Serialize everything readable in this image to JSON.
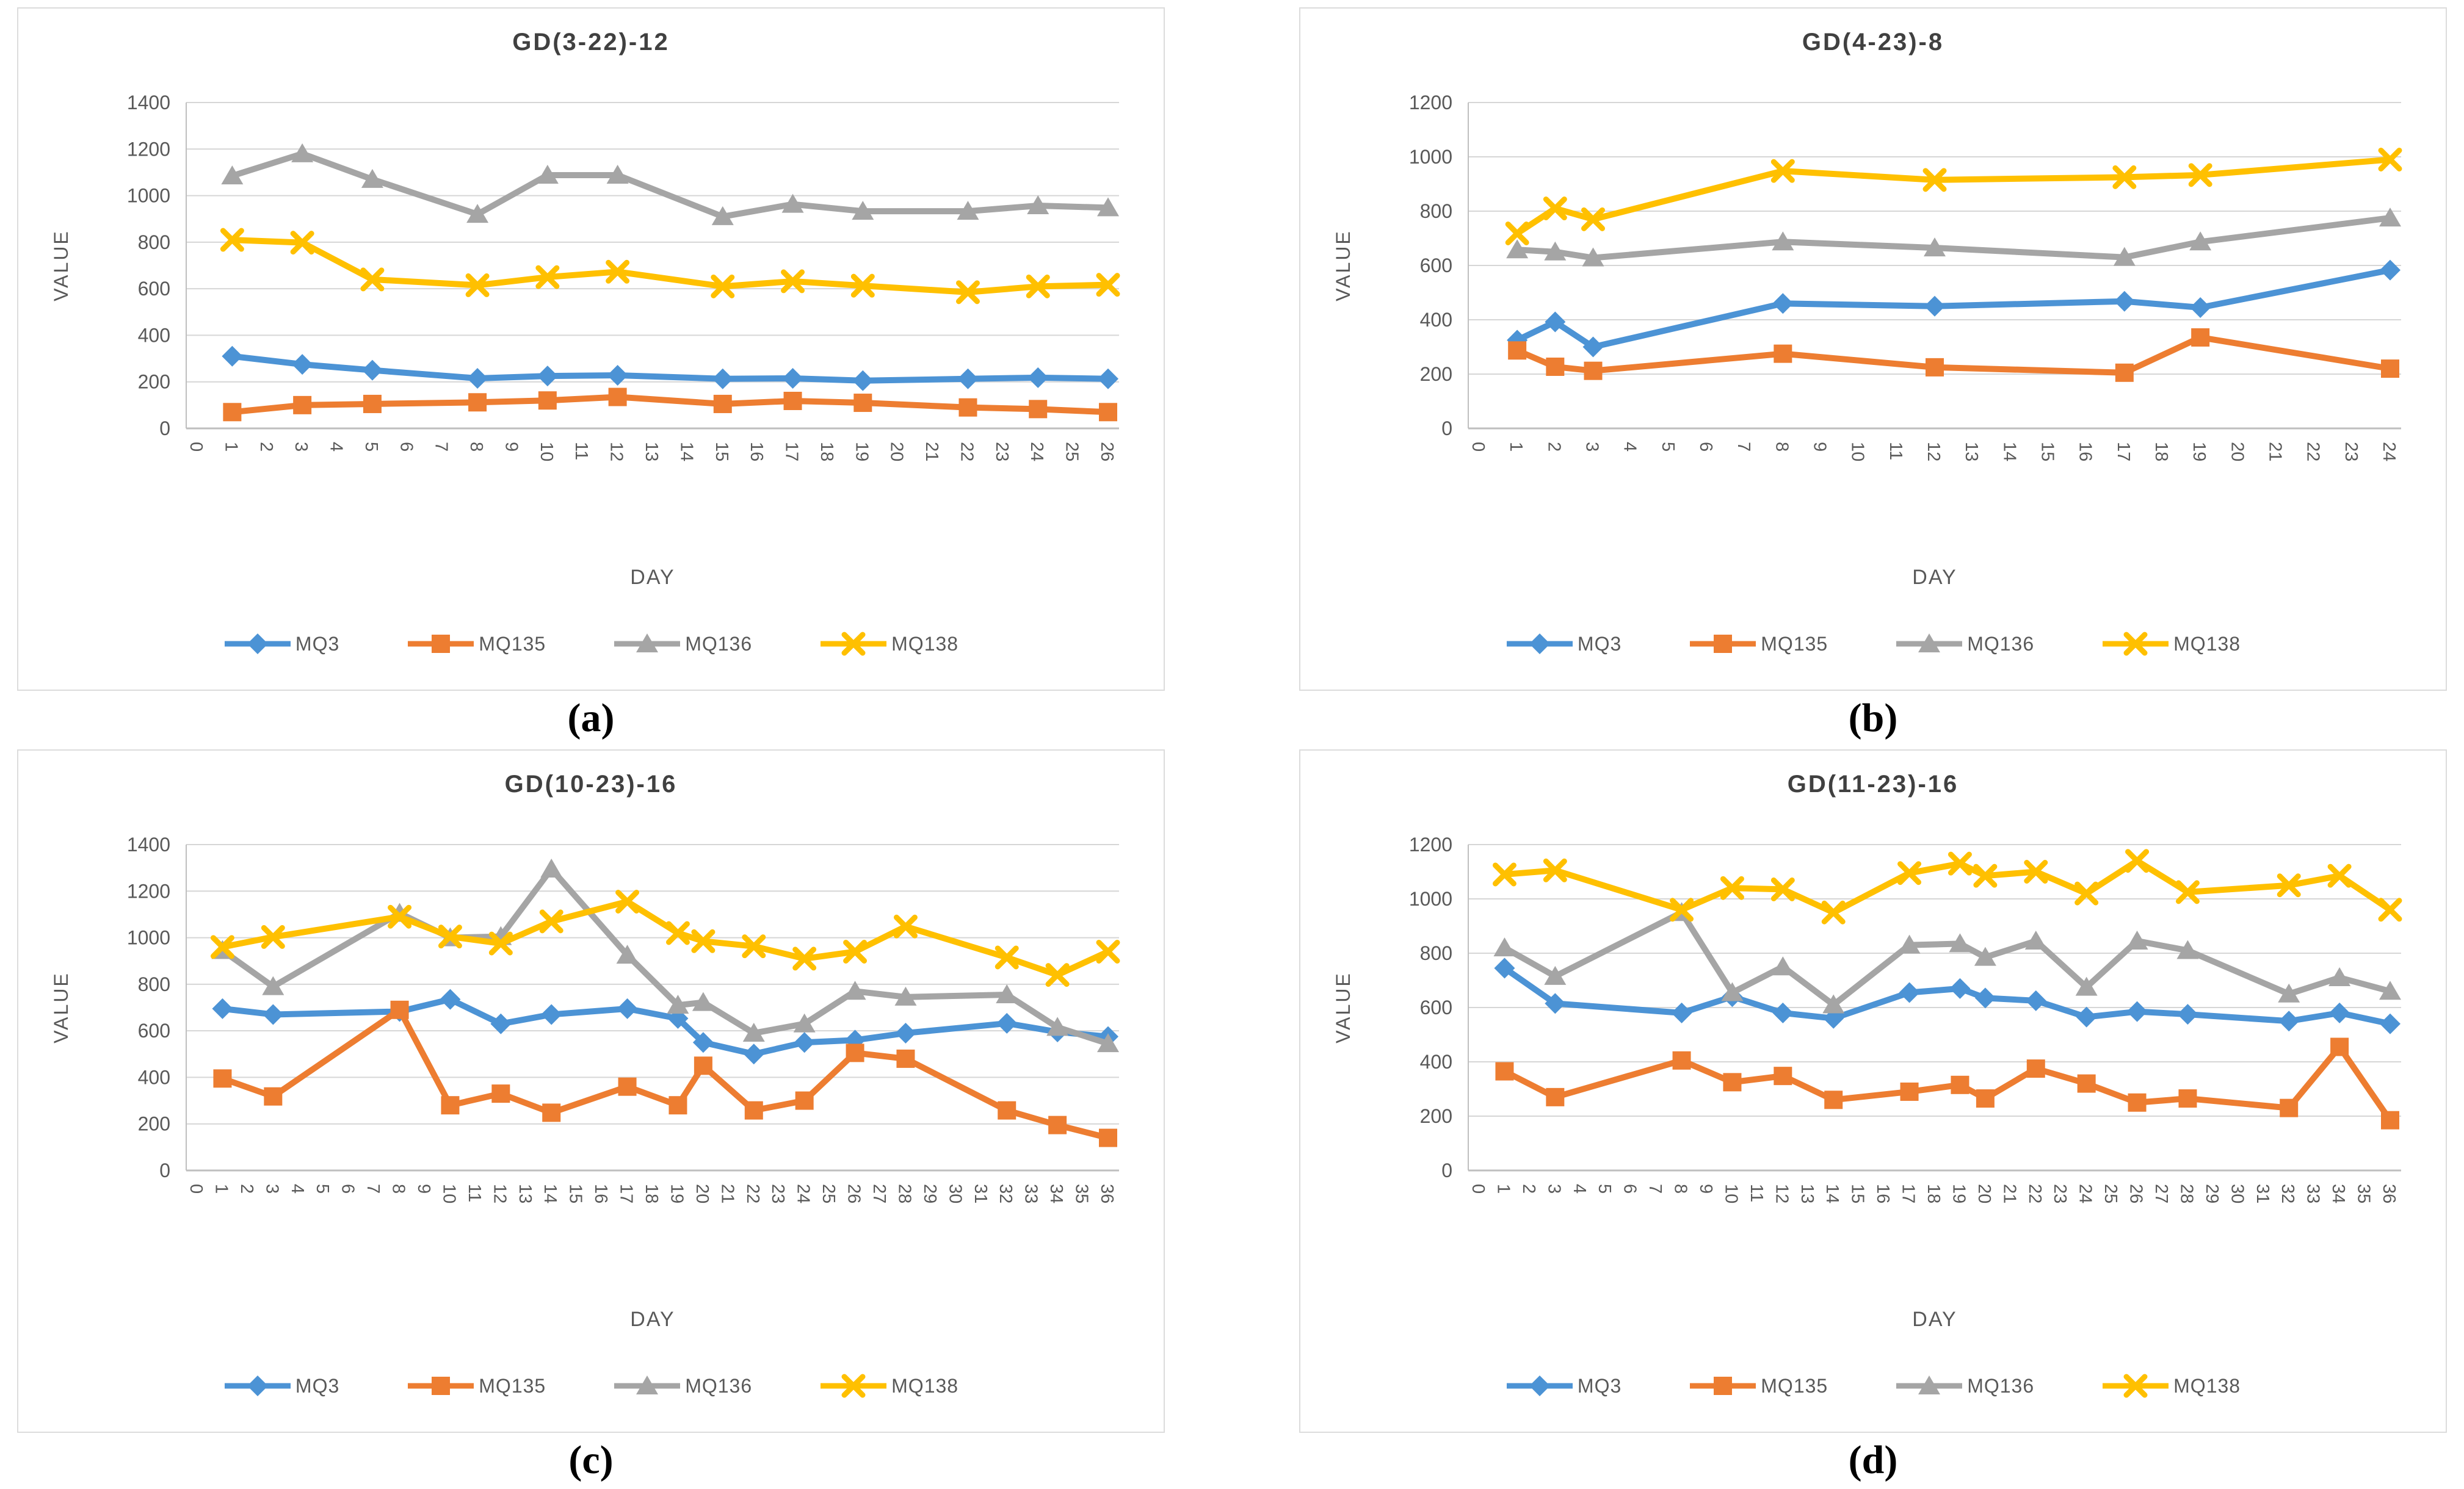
{
  "page_background": "#ffffff",
  "captions": [
    "(a)",
    "(b)",
    "(c)",
    "(d)"
  ],
  "style": {
    "gridline_color": "#d6d6d6",
    "axis_line_color": "#bfbfbf",
    "tick_text_color": "#595959",
    "title_color": "#404040",
    "panel_border_color": "#dcdcdc"
  },
  "chart_data": [
    {
      "type": "line",
      "title": "GD(3-22)-12",
      "xlabel": "DAY",
      "ylabel": "VALUE",
      "xlim": [
        0,
        26
      ],
      "ylim": [
        0,
        1400
      ],
      "xtick_step": 1,
      "ytick_step": 200,
      "grid": "horizontal",
      "legend_position": "bottom",
      "x": [
        1,
        3,
        5,
        8,
        10,
        12,
        15,
        17,
        19,
        22,
        24,
        26
      ],
      "series": [
        {
          "name": "MQ3",
          "color": "#4c93d5",
          "marker": "diamond",
          "values": [
            310,
            275,
            250,
            215,
            225,
            228,
            213,
            215,
            205,
            213,
            218,
            213
          ]
        },
        {
          "name": "MQ135",
          "color": "#ed7d31",
          "marker": "square",
          "values": [
            70,
            100,
            105,
            112,
            120,
            135,
            105,
            118,
            110,
            90,
            83,
            70
          ]
        },
        {
          "name": "MQ136",
          "color": "#a5a5a5",
          "marker": "triangle",
          "values": [
            1085,
            1180,
            1070,
            920,
            1088,
            1088,
            910,
            963,
            933,
            933,
            957,
            948
          ]
        },
        {
          "name": "MQ138",
          "color": "#ffc000",
          "marker": "x",
          "values": [
            810,
            798,
            640,
            615,
            650,
            673,
            610,
            632,
            613,
            585,
            610,
            617
          ]
        }
      ]
    },
    {
      "type": "line",
      "title": "GD(4-23)-8",
      "xlabel": "DAY",
      "ylabel": "VALUE",
      "xlim": [
        0,
        24
      ],
      "ylim": [
        0,
        1200
      ],
      "xtick_step": 1,
      "ytick_step": 200,
      "grid": "horizontal",
      "legend_position": "bottom",
      "x": [
        1,
        2,
        3,
        8,
        12,
        17,
        19,
        24
      ],
      "series": [
        {
          "name": "MQ3",
          "color": "#4c93d5",
          "marker": "diamond",
          "values": [
            325,
            392,
            300,
            460,
            450,
            468,
            445,
            583
          ]
        },
        {
          "name": "MQ135",
          "color": "#ed7d31",
          "marker": "square",
          "values": [
            287,
            227,
            212,
            275,
            225,
            205,
            335,
            220
          ]
        },
        {
          "name": "MQ136",
          "color": "#a5a5a5",
          "marker": "triangle",
          "values": [
            658,
            650,
            628,
            687,
            665,
            630,
            687,
            775
          ]
        },
        {
          "name": "MQ138",
          "color": "#ffc000",
          "marker": "x",
          "values": [
            718,
            810,
            770,
            948,
            915,
            925,
            933,
            990
          ]
        }
      ]
    },
    {
      "type": "line",
      "title": "GD(10-23)-16",
      "xlabel": "DAY",
      "ylabel": "VALUE",
      "xlim": [
        0,
        36
      ],
      "ylim": [
        0,
        1400
      ],
      "xtick_step": 1,
      "ytick_step": 200,
      "grid": "horizontal",
      "legend_position": "bottom",
      "x": [
        1,
        3,
        8,
        10,
        12,
        14,
        17,
        19,
        20,
        22,
        24,
        26,
        28,
        32,
        34,
        36
      ],
      "series": [
        {
          "name": "MQ3",
          "color": "#4c93d5",
          "marker": "diamond",
          "values": [
            695,
            670,
            683,
            735,
            630,
            670,
            695,
            653,
            550,
            500,
            550,
            560,
            590,
            632,
            595,
            575
          ]
        },
        {
          "name": "MQ135",
          "color": "#ed7d31",
          "marker": "square",
          "values": [
            395,
            318,
            690,
            280,
            330,
            248,
            360,
            280,
            450,
            258,
            300,
            505,
            480,
            258,
            195,
            140
          ]
        },
        {
          "name": "MQ136",
          "color": "#a5a5a5",
          "marker": "triangle",
          "values": [
            945,
            790,
            1105,
            1000,
            1005,
            1295,
            925,
            710,
            722,
            590,
            630,
            770,
            745,
            755,
            615,
            545
          ]
        },
        {
          "name": "MQ138",
          "color": "#ffc000",
          "marker": "x",
          "values": [
            960,
            1003,
            1090,
            1005,
            975,
            1070,
            1155,
            1020,
            985,
            963,
            910,
            940,
            1048,
            915,
            840,
            940
          ]
        }
      ]
    },
    {
      "type": "line",
      "title": "GD(11-23)-16",
      "xlabel": "DAY",
      "ylabel": "VALUE",
      "xlim": [
        0,
        36
      ],
      "ylim": [
        0,
        1200
      ],
      "xtick_step": 1,
      "ytick_step": 200,
      "grid": "horizontal",
      "legend_position": "bottom",
      "x": [
        1,
        3,
        8,
        10,
        12,
        14,
        17,
        19,
        20,
        22,
        24,
        26,
        28,
        32,
        34,
        36
      ],
      "series": [
        {
          "name": "MQ3",
          "color": "#4c93d5",
          "marker": "diamond",
          "values": [
            745,
            615,
            580,
            640,
            580,
            560,
            655,
            670,
            635,
            625,
            565,
            585,
            575,
            550,
            580,
            540
          ]
        },
        {
          "name": "MQ135",
          "color": "#ed7d31",
          "marker": "square",
          "values": [
            365,
            270,
            405,
            325,
            348,
            260,
            290,
            315,
            265,
            375,
            320,
            250,
            265,
            230,
            455,
            185
          ]
        },
        {
          "name": "MQ136",
          "color": "#a5a5a5",
          "marker": "triangle",
          "values": [
            820,
            715,
            950,
            655,
            750,
            610,
            830,
            835,
            785,
            845,
            675,
            845,
            810,
            650,
            710,
            660
          ]
        },
        {
          "name": "MQ138",
          "color": "#ffc000",
          "marker": "x",
          "values": [
            1090,
            1105,
            960,
            1040,
            1035,
            950,
            1095,
            1130,
            1085,
            1100,
            1020,
            1140,
            1025,
            1050,
            1085,
            960
          ]
        }
      ]
    }
  ]
}
